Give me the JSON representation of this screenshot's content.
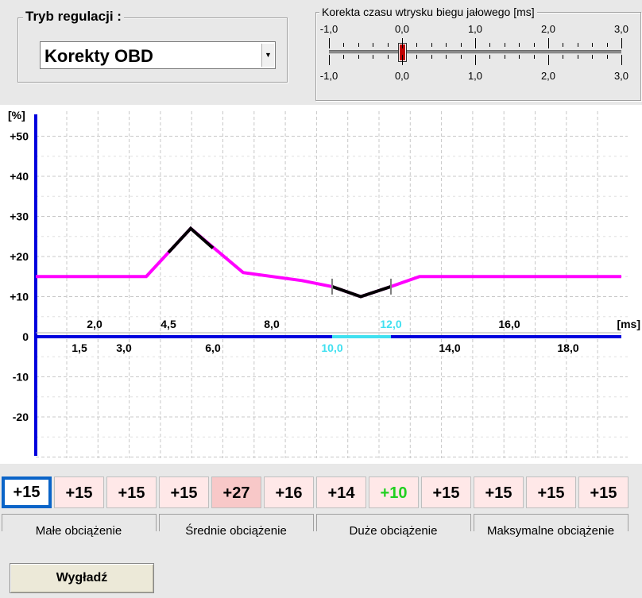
{
  "mode": {
    "title": "Tryb regulacji :",
    "selected": "Korekty OBD"
  },
  "idle": {
    "title": "Korekta czasu wtrysku biegu jałowego [ms]",
    "ticks": [
      "-1,0",
      "0,0",
      "1,0",
      "2,0",
      "3,0"
    ],
    "value_ms": 0.0
  },
  "chart_data": {
    "type": "line",
    "ylabel": "[%]",
    "xlabel": "[ms]",
    "ylim": [
      -30,
      50
    ],
    "xlim": [
      0,
      20
    ],
    "y_ticks": [
      "+50",
      "+40",
      "+30",
      "+20",
      "+10",
      "0",
      "-10",
      "-20"
    ],
    "x_ticks_upper": [
      "2,0",
      "4,5",
      "8,0",
      "12,0",
      "16,0"
    ],
    "x_ticks_lower": [
      "1,5",
      "3,0",
      "6,0",
      "10,0",
      "14,0",
      "18,0"
    ],
    "highlighted_ticks": [
      "10,0",
      "12,0"
    ],
    "series": [
      {
        "color": "#ff00ff",
        "points": [
          [
            0,
            15
          ],
          [
            3.8,
            15
          ],
          [
            5.2,
            27
          ],
          [
            7,
            16
          ],
          [
            9,
            14
          ],
          [
            10,
            12.5
          ],
          [
            11,
            10
          ],
          [
            12,
            12.5
          ],
          [
            13,
            15
          ],
          [
            20,
            15
          ]
        ]
      }
    ],
    "active_segments": [
      [
        4.5,
        6.0
      ],
      [
        10.0,
        12.0
      ]
    ],
    "active_color": "#000000",
    "x_highlight_range": [
      10.0,
      12.0
    ],
    "x_highlight_color": "#40e0f0",
    "grid": true
  },
  "cells": [
    {
      "value": "+15",
      "selected": true
    },
    {
      "value": "+15"
    },
    {
      "value": "+15"
    },
    {
      "value": "+15"
    },
    {
      "value": "+27",
      "highlight": true
    },
    {
      "value": "+16"
    },
    {
      "value": "+14"
    },
    {
      "value": "+10",
      "color": "#20d020"
    },
    {
      "value": "+15"
    },
    {
      "value": "+15"
    },
    {
      "value": "+15"
    },
    {
      "value": "+15"
    }
  ],
  "load_labels": [
    "Małe obciążenie",
    "Średnie obciążenie",
    "Duże obciążenie",
    "Maksymalne obciążenie"
  ],
  "smooth_button": "Wygładź"
}
